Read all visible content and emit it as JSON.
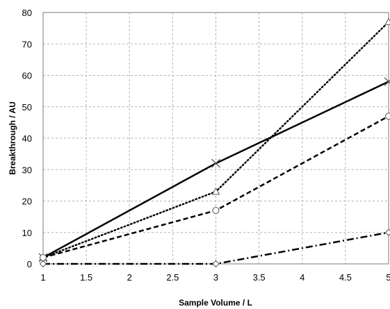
{
  "chart_data": {
    "type": "line",
    "title": "",
    "xlabel": "Sample Volume  / L",
    "ylabel": "Breakthrough / AU",
    "xlim": [
      1,
      5
    ],
    "ylim": [
      0,
      80
    ],
    "xticks": [
      1,
      1.5,
      2,
      2.5,
      3,
      3.5,
      4,
      4.5,
      5
    ],
    "yticks": [
      0,
      10,
      20,
      30,
      40,
      50,
      60,
      70,
      80
    ],
    "grid": true,
    "legend": "none",
    "series": [
      {
        "marker": "x",
        "dash": "solid",
        "color": "#000000",
        "x": [
          1,
          3,
          5
        ],
        "y": [
          2,
          32,
          58
        ]
      },
      {
        "marker": "triangle",
        "dash": "dotted",
        "color": "#000000",
        "x": [
          1,
          3,
          5
        ],
        "y": [
          2,
          23,
          77
        ]
      },
      {
        "marker": "circle",
        "dash": "dashed",
        "color": "#000000",
        "x": [
          1,
          3,
          5
        ],
        "y": [
          2,
          17,
          47
        ]
      },
      {
        "marker": "diamond",
        "dash": "dashdot",
        "color": "#000000",
        "x": [
          1,
          3,
          5
        ],
        "y": [
          0,
          0,
          10
        ]
      }
    ]
  }
}
